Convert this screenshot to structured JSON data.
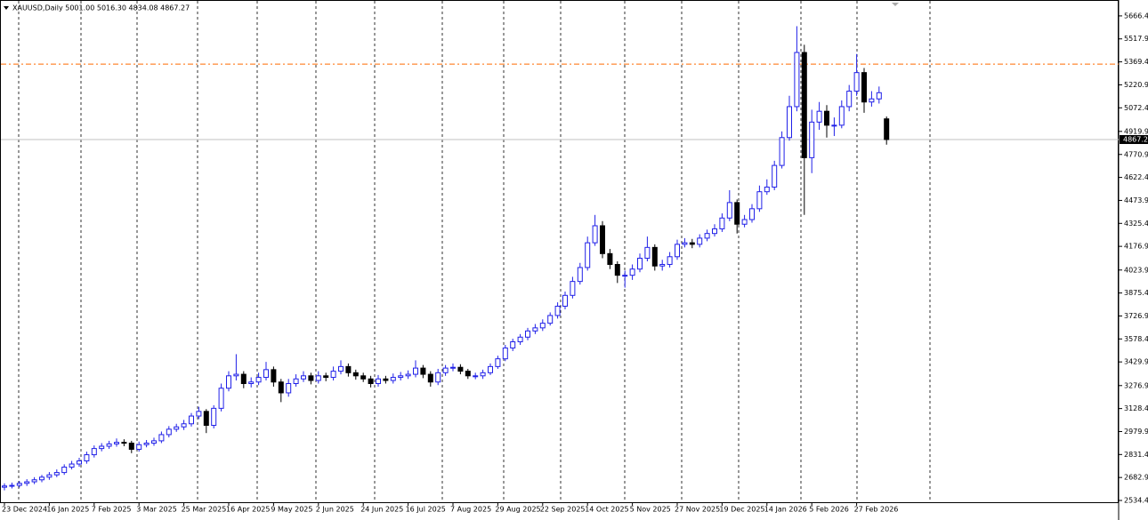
{
  "chart_data": {
    "type": "candlestick",
    "title": "XAUUSD,Daily  5001.00 5016.30 4834.08 4867.27",
    "categories": [
      "23 Dec 2024",
      null,
      null,
      null,
      null,
      null,
      "16 Jan 2025",
      null,
      null,
      null,
      null,
      null,
      "7 Feb 2025",
      null,
      null,
      null,
      null,
      null,
      "3 Mar 2025",
      null,
      null,
      null,
      null,
      null,
      "25 Mar 2025",
      null,
      null,
      null,
      null,
      null,
      "16 Apr 2025",
      null,
      null,
      null,
      null,
      null,
      "9 May 2025",
      null,
      null,
      null,
      null,
      null,
      "2 Jun 2025",
      null,
      null,
      null,
      null,
      null,
      "24 Jun 2025",
      null,
      null,
      null,
      null,
      null,
      "16 Jul 2025",
      null,
      null,
      null,
      null,
      null,
      "7 Aug 2025",
      null,
      null,
      null,
      null,
      null,
      "29 Aug 2025",
      null,
      null,
      null,
      null,
      null,
      "22 Sep 2025",
      null,
      null,
      null,
      null,
      null,
      "14 Oct 2025",
      null,
      null,
      null,
      null,
      null,
      "5 Nov 2025",
      null,
      null,
      null,
      null,
      null,
      "27 Nov 2025",
      null,
      null,
      null,
      null,
      null,
      "19 Dec 2025",
      null,
      null,
      null,
      null,
      null,
      "14 Jan 2026",
      null,
      null,
      null,
      null,
      null,
      "5 Feb 2026",
      null,
      null,
      null,
      null,
      null,
      "27 Feb 2026",
      null,
      null,
      null,
      null
    ],
    "open": [
      2620,
      2628,
      2632,
      2645,
      2655,
      2668,
      2685,
      2700,
      2715,
      2750,
      2770,
      2790,
      2830,
      2870,
      2885,
      2900,
      2910,
      2905,
      2865,
      2895,
      2905,
      2920,
      2960,
      2995,
      3010,
      3030,
      3080,
      3110,
      3020,
      3130,
      3260,
      3340,
      3350,
      3290,
      3300,
      3330,
      3380,
      3300,
      3230,
      3290,
      3320,
      3340,
      3310,
      3340,
      3330,
      3370,
      3400,
      3360,
      3340,
      3320,
      3290,
      3320,
      3310,
      3330,
      3340,
      3350,
      3390,
      3350,
      3300,
      3360,
      3390,
      3395,
      3370,
      3340,
      3340,
      3360,
      3400,
      3450,
      3520,
      3560,
      3590,
      3630,
      3650,
      3680,
      3730,
      3790,
      3860,
      3950,
      4040,
      4200,
      4310,
      4130,
      4060,
      3990,
      3990,
      4030,
      4100,
      4170,
      4050,
      4060,
      4110,
      4190,
      4200,
      4190,
      4230,
      4260,
      4290,
      4360,
      4460,
      4320,
      4350,
      4420,
      4530,
      4560,
      4700,
      4880,
      5080,
      5430,
      4750,
      4980,
      5050,
      4960,
      4960,
      5080,
      5180,
      5300,
      5110,
      5130,
      5001.0
    ],
    "high": [
      2645,
      2650,
      2660,
      2672,
      2685,
      2700,
      2718,
      2735,
      2768,
      2790,
      2810,
      2850,
      2890,
      2905,
      2920,
      2935,
      2930,
      2920,
      2915,
      2925,
      2940,
      2980,
      3015,
      3030,
      3055,
      3100,
      3140,
      3125,
      3150,
      3290,
      3370,
      3480,
      3370,
      3330,
      3360,
      3430,
      3400,
      3320,
      3320,
      3350,
      3370,
      3360,
      3370,
      3360,
      3400,
      3440,
      3420,
      3380,
      3360,
      3340,
      3345,
      3340,
      3355,
      3365,
      3375,
      3440,
      3410,
      3370,
      3385,
      3410,
      3420,
      3415,
      3385,
      3360,
      3380,
      3420,
      3470,
      3540,
      3580,
      3610,
      3650,
      3675,
      3705,
      3750,
      3815,
      3885,
      3980,
      4070,
      4240,
      4380,
      4340,
      4160,
      4080,
      4020,
      4060,
      4130,
      4240,
      4190,
      4090,
      4140,
      4220,
      4230,
      4225,
      4255,
      4285,
      4320,
      4390,
      4540,
      4480,
      4380,
      4450,
      4570,
      4610,
      4730,
      4920,
      5150,
      5600,
      5480,
      5060,
      5110,
      5090,
      5010,
      5120,
      5220,
      5420,
      5330,
      5180,
      5210,
      5016.3
    ],
    "low": [
      2600,
      2612,
      2618,
      2628,
      2640,
      2652,
      2668,
      2685,
      2700,
      2735,
      2752,
      2772,
      2812,
      2852,
      2868,
      2882,
      2885,
      2840,
      2850,
      2878,
      2888,
      2905,
      2942,
      2978,
      2990,
      3012,
      3060,
      2970,
      3000,
      3110,
      3240,
      3310,
      3260,
      3265,
      3280,
      3310,
      3270,
      3170,
      3205,
      3270,
      3300,
      3285,
      3290,
      3305,
      3310,
      3350,
      3335,
      3315,
      3300,
      3265,
      3270,
      3290,
      3290,
      3310,
      3320,
      3330,
      3325,
      3270,
      3280,
      3340,
      3370,
      3350,
      3320,
      3318,
      3320,
      3345,
      3385,
      3435,
      3500,
      3540,
      3570,
      3610,
      3630,
      3665,
      3710,
      3770,
      3840,
      3930,
      4020,
      4180,
      4100,
      4030,
      3940,
      3910,
      3960,
      4010,
      4080,
      4020,
      4020,
      4040,
      4090,
      4170,
      4165,
      4170,
      4210,
      4240,
      4270,
      4340,
      4260,
      4300,
      4330,
      4400,
      4510,
      4540,
      4680,
      4860,
      5050,
      4380,
      4650,
      4930,
      4880,
      4890,
      4940,
      5050,
      5150,
      5040,
      5080,
      5100,
      4834.08
    ],
    "close": [
      2628,
      2632,
      2645,
      2655,
      2668,
      2685,
      2700,
      2715,
      2750,
      2770,
      2790,
      2830,
      2870,
      2885,
      2900,
      2910,
      2905,
      2865,
      2895,
      2905,
      2920,
      2960,
      2995,
      3010,
      3030,
      3080,
      3110,
      3020,
      3130,
      3260,
      3340,
      3350,
      3290,
      3300,
      3330,
      3380,
      3300,
      3230,
      3290,
      3320,
      3340,
      3310,
      3340,
      3330,
      3370,
      3400,
      3360,
      3340,
      3320,
      3290,
      3320,
      3310,
      3330,
      3340,
      3350,
      3390,
      3350,
      3300,
      3360,
      3390,
      3395,
      3370,
      3340,
      3340,
      3360,
      3400,
      3450,
      3520,
      3560,
      3590,
      3630,
      3650,
      3680,
      3730,
      3790,
      3860,
      3950,
      4040,
      4200,
      4310,
      4130,
      4060,
      3990,
      3990,
      4030,
      4100,
      4170,
      4050,
      4060,
      4110,
      4190,
      4200,
      4190,
      4230,
      4260,
      4290,
      4360,
      4460,
      4320,
      4350,
      4420,
      4530,
      4560,
      4700,
      4880,
      5080,
      5430,
      4750,
      4980,
      5050,
      4960,
      4960,
      5080,
      5180,
      5300,
      5110,
      5130,
      5170,
      4867.27
    ],
    "up_color": "#2020e8",
    "down_color": "#000000",
    "reference_line": {
      "value": 5355,
      "color": "#ff6a00"
    },
    "ylim": [
      2523,
      5752
    ],
    "yticks": [
      {
        "value": 5666.4,
        "label": "5666.40"
      },
      {
        "value": 5517.9,
        "label": "5517.90"
      },
      {
        "value": 5369.4,
        "label": "5369.40"
      },
      {
        "value": 5220.9,
        "label": "5220.90"
      },
      {
        "value": 5072.4,
        "label": "5072.40"
      },
      {
        "value": 4919.9,
        "label": "4919.90"
      },
      {
        "value": 4770.9,
        "label": "4770.90"
      },
      {
        "value": 4622.4,
        "label": "4622.40"
      },
      {
        "value": 4473.9,
        "label": "4473.90"
      },
      {
        "value": 4325.4,
        "label": "4325.40"
      },
      {
        "value": 4176.9,
        "label": "4176.90"
      },
      {
        "value": 4023.9,
        "label": "4023.90"
      },
      {
        "value": 3875.4,
        "label": "3875.40"
      },
      {
        "value": 3726.9,
        "label": "3726.90"
      },
      {
        "value": 3578.4,
        "label": "3578.40"
      },
      {
        "value": 3429.9,
        "label": "3429.90"
      },
      {
        "value": 3276.9,
        "label": "3276.90"
      },
      {
        "value": 3128.4,
        "label": "3128.40"
      },
      {
        "value": 2979.9,
        "label": "2979.90"
      },
      {
        "value": 2831.4,
        "label": "2831.40"
      },
      {
        "value": 2682.9,
        "label": "2682.90"
      },
      {
        "value": 2534.4,
        "label": "2534.40"
      }
    ]
  }
}
